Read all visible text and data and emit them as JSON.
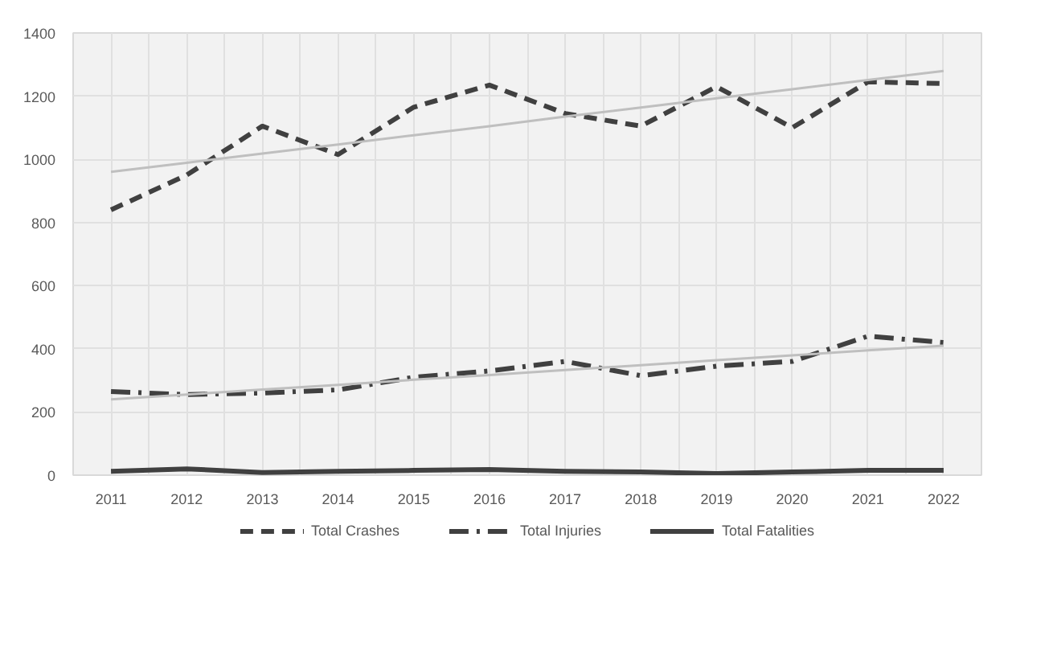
{
  "chart_data": {
    "type": "line",
    "categories": [
      "2011",
      "2012",
      "2013",
      "2014",
      "2015",
      "2016",
      "2017",
      "2018",
      "2019",
      "2020",
      "2021",
      "2022"
    ],
    "ylim": [
      0,
      1400
    ],
    "yticks": [
      0,
      200,
      400,
      600,
      800,
      1000,
      1200,
      1400
    ],
    "grid": true,
    "legend": "bottom",
    "series": [
      {
        "name": "Total Crashes",
        "color": "#404040",
        "line_style": "dashed",
        "values": [
          840,
          950,
          1105,
          1015,
          1165,
          1235,
          1145,
          1105,
          1230,
          1100,
          1245,
          1240
        ]
      },
      {
        "name": "Total Injuries",
        "color": "#404040",
        "line_style": "dashdot",
        "values": [
          265,
          255,
          260,
          270,
          310,
          330,
          360,
          315,
          345,
          360,
          440,
          420
        ]
      },
      {
        "name": "Total Fatalities",
        "color": "#404040",
        "line_style": "solid",
        "values": [
          12,
          20,
          8,
          12,
          15,
          18,
          12,
          10,
          5,
          10,
          15,
          15
        ]
      },
      {
        "color": "#bfbfbf",
        "line_style": "solid",
        "values": [
          960,
          989,
          1018,
          1047,
          1076,
          1105,
          1135,
          1164,
          1193,
          1222,
          1251,
          1280
        ]
      },
      {
        "color": "#bfbfbf",
        "line_style": "solid",
        "values": [
          240,
          255,
          271,
          286,
          302,
          317,
          333,
          348,
          364,
          379,
          395,
          410
        ]
      }
    ]
  }
}
